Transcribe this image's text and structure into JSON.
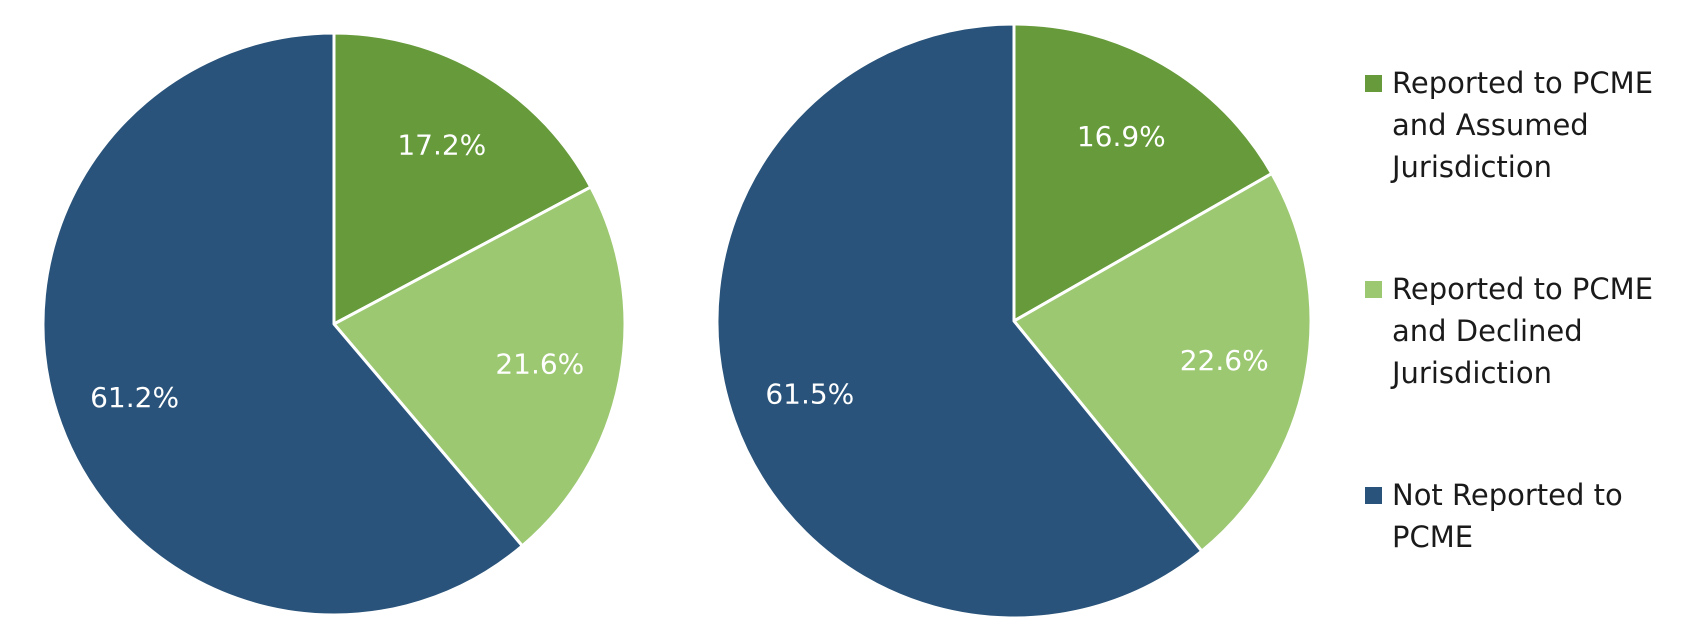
{
  "colors": {
    "assumed": "#669a3a",
    "declined": "#9cc871",
    "not_reported": "#29537a"
  },
  "legend": [
    {
      "label": "Reported to PCME and Assumed Jurisdiction",
      "color": "#669a3a"
    },
    {
      "label": "Reported to PCME and Declined Jurisdiction",
      "color": "#9cc871"
    },
    {
      "label": "Not Reported to PCME",
      "color": "#29537a"
    }
  ],
  "chart_data": [
    {
      "type": "pie",
      "title": "",
      "start_angle": "12 o'clock, clockwise",
      "slices": [
        {
          "label": "Reported to PCME and Assumed Jurisdiction",
          "value": 17.2,
          "display": "17.2%",
          "color": "#669a3a"
        },
        {
          "label": "Reported to PCME and Declined Jurisdiction",
          "value": 21.6,
          "display": "21.6%",
          "color": "#9cc871"
        },
        {
          "label": "Not Reported to PCME",
          "value": 61.2,
          "display": "61.2%",
          "color": "#29537a"
        }
      ]
    },
    {
      "type": "pie",
      "title": "",
      "start_angle": "12 o'clock, clockwise",
      "slices": [
        {
          "label": "Reported to PCME and Assumed Jurisdiction",
          "value": 16.9,
          "display": "16.9%",
          "color": "#669a3a"
        },
        {
          "label": "Reported to PCME and Declined Jurisdiction",
          "value": 22.6,
          "display": "22.6%",
          "color": "#9cc871"
        },
        {
          "label": "Not Reported to PCME",
          "value": 61.5,
          "display": "61.5%",
          "color": "#29537a"
        }
      ]
    }
  ]
}
